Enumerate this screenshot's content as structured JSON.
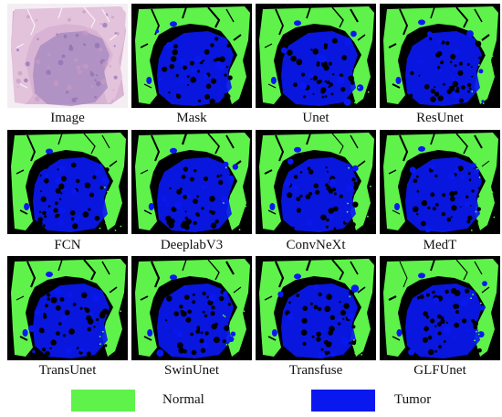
{
  "figure": {
    "panels": [
      {
        "label": "Image",
        "kind": "histology"
      },
      {
        "label": "Mask",
        "kind": "mask"
      },
      {
        "label": "Unet",
        "kind": "mask"
      },
      {
        "label": "ResUnet",
        "kind": "mask"
      },
      {
        "label": "FCN",
        "kind": "mask"
      },
      {
        "label": "DeeplabV3",
        "kind": "mask"
      },
      {
        "label": "ConvNeXt",
        "kind": "mask"
      },
      {
        "label": "MedT",
        "kind": "mask"
      },
      {
        "label": "TransUnet",
        "kind": "mask"
      },
      {
        "label": "SwinUnet",
        "kind": "mask"
      },
      {
        "label": "Transfuse",
        "kind": "mask"
      },
      {
        "label": "GLFUnet",
        "kind": "mask"
      }
    ]
  },
  "legend": {
    "normal_label": "Normal",
    "tumor_label": "Tumor",
    "normal_color": "#5ef24a",
    "tumor_color": "#0a18f0"
  }
}
